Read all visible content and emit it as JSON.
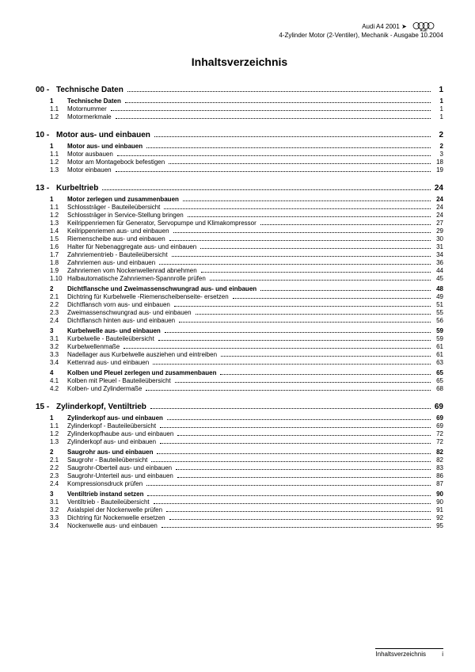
{
  "header": {
    "model": "Audi A4 2001",
    "arrow": "➤",
    "subtitle": "4-Zylinder Motor (2-Ventiler), Mechanik - Ausgabe 10.2004",
    "brand": "Audi"
  },
  "title": "Inhaltsverzeichnis",
  "sections": [
    {
      "num": "00 -",
      "label": "Technische Daten",
      "page": "1",
      "items": [
        {
          "lvl": 0,
          "num": "1",
          "label": "Technische Daten",
          "page": "1"
        },
        {
          "lvl": 1,
          "num": "1.1",
          "label": "Motornummer",
          "page": "1"
        },
        {
          "lvl": 1,
          "num": "1.2",
          "label": "Motormerkmale",
          "page": "1"
        }
      ]
    },
    {
      "num": "10 -",
      "label": "Motor aus- und einbauen",
      "page": "2",
      "items": [
        {
          "lvl": 0,
          "num": "1",
          "label": "Motor aus- und einbauen",
          "page": "2"
        },
        {
          "lvl": 1,
          "num": "1.1",
          "label": "Motor ausbauen",
          "page": "3"
        },
        {
          "lvl": 1,
          "num": "1.2",
          "label": "Motor am Montagebock befestigen",
          "page": "18"
        },
        {
          "lvl": 1,
          "num": "1.3",
          "label": "Motor einbauen",
          "page": "19"
        }
      ]
    },
    {
      "num": "13 -",
      "label": "Kurbeltrieb",
      "page": "24",
      "items": [
        {
          "lvl": 0,
          "num": "1",
          "label": "Motor zerlegen und zusammenbauen",
          "page": "24"
        },
        {
          "lvl": 1,
          "num": "1.1",
          "label": "Schlossträger - Bauteileübersicht",
          "page": "24"
        },
        {
          "lvl": 1,
          "num": "1.2",
          "label": "Schlossträger in Service-Stellung bringen",
          "page": "24"
        },
        {
          "lvl": 1,
          "num": "1.3",
          "label": "Keilrippenriemen für Generator, Servopumpe und Klimakompressor",
          "page": "27"
        },
        {
          "lvl": 1,
          "num": "1.4",
          "label": "Keilrippenriemen aus- und einbauen",
          "page": "29"
        },
        {
          "lvl": 1,
          "num": "1.5",
          "label": "Riemenscheibe aus- und einbauen",
          "page": "30"
        },
        {
          "lvl": 1,
          "num": "1.6",
          "label": "Halter für Nebenaggregate aus- und einbauen",
          "page": "31"
        },
        {
          "lvl": 1,
          "num": "1.7",
          "label": "Zahnriementrieb - Bauteileübersicht",
          "page": "34"
        },
        {
          "lvl": 1,
          "num": "1.8",
          "label": "Zahnriemen aus- und einbauen",
          "page": "36"
        },
        {
          "lvl": 1,
          "num": "1.9",
          "label": "Zahnriemen vom Nockenwellenrad abnehmen",
          "page": "44"
        },
        {
          "lvl": 1,
          "num": "1.10",
          "label": "Halbautomatische Zahnriemen-Spannrolle prüfen",
          "page": "45"
        },
        {
          "lvl": 0,
          "num": "2",
          "label": "Dichtflansche und Zweimassenschwungrad aus- und einbauen",
          "page": "48"
        },
        {
          "lvl": 1,
          "num": "2.1",
          "label": "Dichtring für Kurbelwelle -Riemenscheibenseite- ersetzen",
          "page": "49"
        },
        {
          "lvl": 1,
          "num": "2.2",
          "label": "Dichtflansch vorn aus- und einbauen",
          "page": "51"
        },
        {
          "lvl": 1,
          "num": "2.3",
          "label": "Zweimassenschwungrad aus- und einbauen",
          "page": "55"
        },
        {
          "lvl": 1,
          "num": "2.4",
          "label": "Dichtflansch hinten aus- und einbauen",
          "page": "56"
        },
        {
          "lvl": 0,
          "num": "3",
          "label": "Kurbelwelle aus- und einbauen",
          "page": "59"
        },
        {
          "lvl": 1,
          "num": "3.1",
          "label": "Kurbelwelle - Bauteileübersicht",
          "page": "59"
        },
        {
          "lvl": 1,
          "num": "3.2",
          "label": "Kurbelwellenmaße",
          "page": "61"
        },
        {
          "lvl": 1,
          "num": "3.3",
          "label": "Nadellager aus Kurbelwelle ausziehen und eintreiben",
          "page": "61"
        },
        {
          "lvl": 1,
          "num": "3.4",
          "label": "Kettenrad aus- und einbauen",
          "page": "63"
        },
        {
          "lvl": 0,
          "num": "4",
          "label": "Kolben und Pleuel zerlegen und zusammenbauen",
          "page": "65"
        },
        {
          "lvl": 1,
          "num": "4.1",
          "label": "Kolben mit Pleuel - Bauteileübersicht",
          "page": "65"
        },
        {
          "lvl": 1,
          "num": "4.2",
          "label": "Kolben- und Zylindermaße",
          "page": "68"
        }
      ]
    },
    {
      "num": "15 -",
      "label": "Zylinderkopf, Ventiltrieb",
      "page": "69",
      "items": [
        {
          "lvl": 0,
          "num": "1",
          "label": "Zylinderkopf aus- und einbauen",
          "page": "69"
        },
        {
          "lvl": 1,
          "num": "1.1",
          "label": "Zylinderkopf - Bauteileübersicht",
          "page": "69"
        },
        {
          "lvl": 1,
          "num": "1.2",
          "label": "Zylinderkopfhaube aus- und einbauen",
          "page": "72"
        },
        {
          "lvl": 1,
          "num": "1.3",
          "label": "Zylinderkopf aus- und einbauen",
          "page": "72"
        },
        {
          "lvl": 0,
          "num": "2",
          "label": "Saugrohr aus- und einbauen",
          "page": "82"
        },
        {
          "lvl": 1,
          "num": "2.1",
          "label": "Saugrohr - Bauteileübersicht",
          "page": "82"
        },
        {
          "lvl": 1,
          "num": "2.2",
          "label": "Saugrohr-Oberteil aus- und einbauen",
          "page": "83"
        },
        {
          "lvl": 1,
          "num": "2.3",
          "label": "Saugrohr-Unterteil aus- und einbauen",
          "page": "86"
        },
        {
          "lvl": 1,
          "num": "2.4",
          "label": "Kompressionsdruck prüfen",
          "page": "87"
        },
        {
          "lvl": 0,
          "num": "3",
          "label": "Ventiltrieb instand setzen",
          "page": "90"
        },
        {
          "lvl": 1,
          "num": "3.1",
          "label": "Ventiltrieb - Bauteileübersicht",
          "page": "90"
        },
        {
          "lvl": 1,
          "num": "3.2",
          "label": "Axialspiel der Nockenwelle prüfen",
          "page": "91"
        },
        {
          "lvl": 1,
          "num": "3.3",
          "label": "Dichtring für Nockenwelle ersetzen",
          "page": "92"
        },
        {
          "lvl": 1,
          "num": "3.4",
          "label": "Nockenwelle aus- und einbauen",
          "page": "95"
        }
      ]
    }
  ],
  "footer": {
    "label": "Inhaltsverzeichnis",
    "page": "i"
  }
}
